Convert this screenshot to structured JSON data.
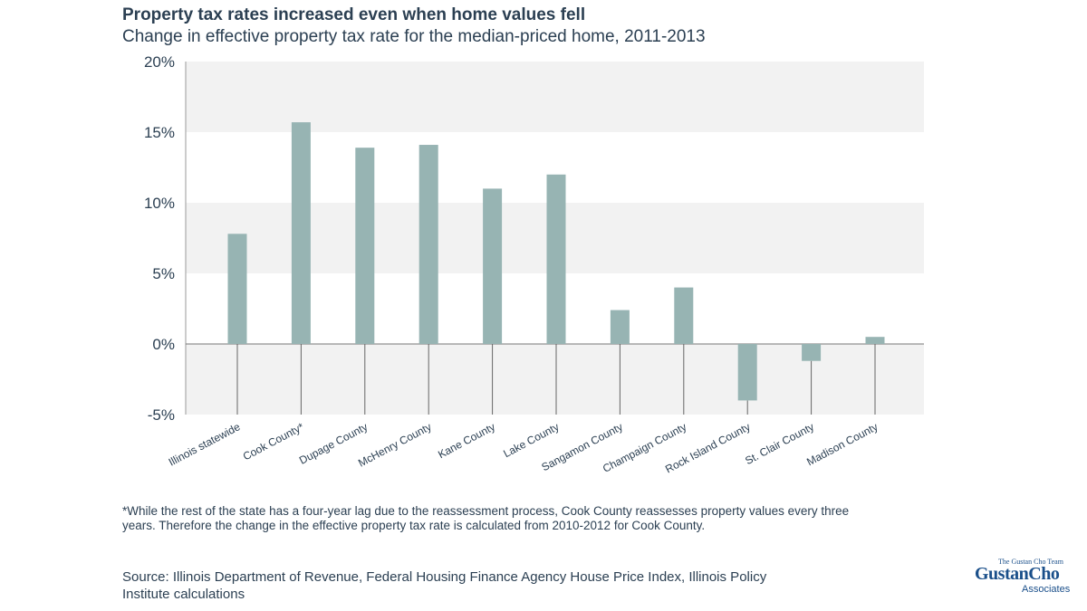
{
  "header": {
    "title": "Property tax rates increased even when home values fell",
    "subtitle": "Change in effective property tax rate for the median-priced home, 2011-2013"
  },
  "chart_data": {
    "type": "bar",
    "title": "Property tax rates increased even when home values fell",
    "subtitle": "Change in effective property tax rate for the median-priced home, 2011-2013",
    "categories": [
      "Illinois statewide",
      "Cook County*",
      "Dupage County",
      "McHenry County",
      "Kane County",
      "Lake County",
      "Sangamon County",
      "Champaign County",
      "Rock Island County",
      "St. Clair County",
      "Madison County"
    ],
    "values": [
      7.8,
      15.7,
      13.9,
      14.1,
      11.0,
      12.0,
      2.4,
      4.0,
      -4.0,
      -1.2,
      0.5
    ],
    "unit": "%",
    "ylim": [
      -5,
      20
    ],
    "yticks": [
      20,
      15,
      10,
      5,
      0,
      -5
    ],
    "ytick_labels": [
      "20%",
      "15%",
      "10%",
      "5%",
      "0%",
      "-5%"
    ],
    "xlabel": "",
    "ylabel": "",
    "grid": "alternating horizontal bands",
    "bar_color": "#97b4b3",
    "band_color": "#f2f2f2"
  },
  "footnote": "*While the rest of the state has a four-year lag due to the reassessment process, Cook County reassesses property values every three years. Therefore the change in the effective property tax rate is calculated from 2010-2012 for Cook County.",
  "source": "Source: Illinois Department of Revenue, Federal Housing Finance Agency House Price Index, Illinois Policy Institute calculations",
  "logo": {
    "team": "The Gustan Cho Team",
    "name": "GustanCho",
    "assoc": "Associates",
    "color": "#1a4f8a"
  }
}
